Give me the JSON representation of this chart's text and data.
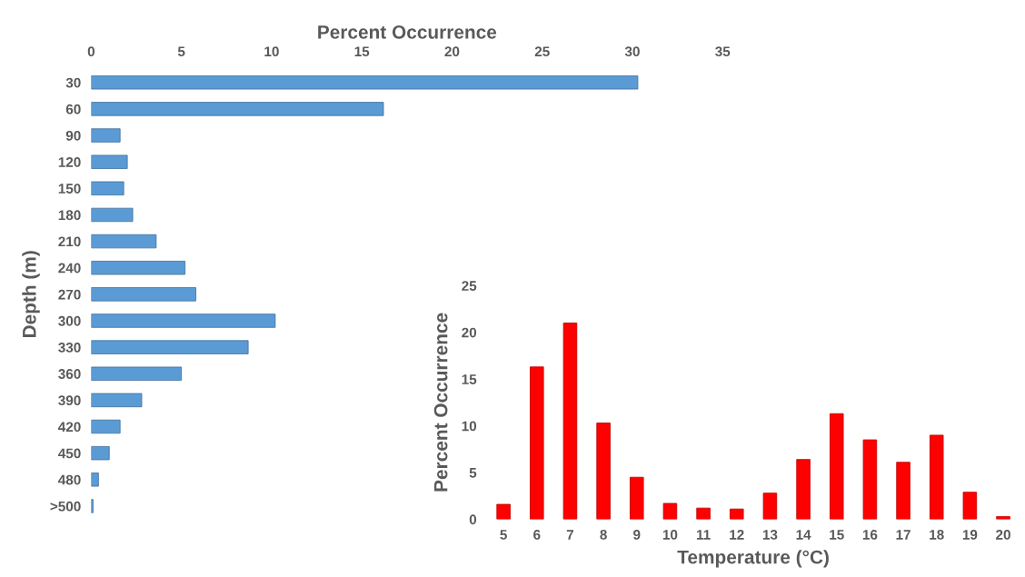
{
  "chart_data": [
    {
      "type": "bar",
      "orientation": "horizontal",
      "xlabel": "Percent Occurrence",
      "ylabel": "Depth (m)",
      "categories": [
        "30",
        "60",
        "90",
        "120",
        "150",
        "180",
        "210",
        "240",
        "270",
        "300",
        "330",
        "360",
        "390",
        "420",
        "450",
        "480",
        ">500"
      ],
      "values": [
        30.3,
        16.2,
        1.6,
        2.0,
        1.8,
        2.3,
        3.6,
        5.2,
        5.8,
        10.2,
        8.7,
        5.0,
        2.8,
        1.6,
        1.0,
        0.4,
        0.1
      ],
      "color": "#5b9bd5",
      "xlim": [
        0,
        35
      ],
      "xticks": [
        0,
        5,
        10,
        15,
        20,
        25,
        30,
        35
      ],
      "grid": false
    },
    {
      "type": "bar",
      "xlabel": "Temperature (°C)",
      "ylabel": "Percent Occurrence",
      "categories": [
        "5",
        "6",
        "7",
        "8",
        "9",
        "10",
        "11",
        "12",
        "13",
        "14",
        "15",
        "16",
        "17",
        "18",
        "19",
        "20"
      ],
      "values": [
        1.6,
        16.3,
        21.0,
        10.3,
        4.5,
        1.7,
        1.2,
        1.1,
        2.8,
        6.4,
        11.3,
        8.5,
        6.1,
        9.0,
        2.9,
        0.3
      ],
      "color": "#ff0000",
      "ylim": [
        0,
        25
      ],
      "yticks": [
        0,
        5,
        10,
        15,
        20,
        25
      ],
      "grid": false
    }
  ]
}
